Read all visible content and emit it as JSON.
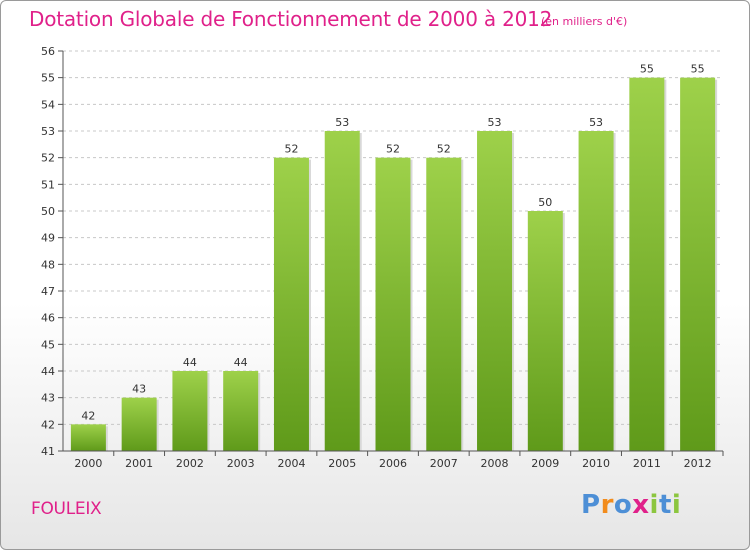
{
  "title": "Dotation Globale de Fonctionnement de 2000 à 2012",
  "subtitle": "(en milliers d'€)",
  "commune": "FOULEIX",
  "logo": {
    "text": "Proxiti",
    "letters": [
      {
        "char": "P",
        "color": "#4d8fd6"
      },
      {
        "char": "r",
        "color": "#f28c1c"
      },
      {
        "char": "o",
        "color": "#4d8fd6"
      },
      {
        "char": "x",
        "color": "#e0218a"
      },
      {
        "char": "i",
        "color": "#8cc63f"
      },
      {
        "char": "t",
        "color": "#4d8fd6"
      },
      {
        "char": "i",
        "color": "#8cc63f"
      }
    ]
  },
  "colors": {
    "accent": "#e0218a",
    "bar_light": "#9ed14a",
    "bar_dark": "#5f9a1a",
    "grid": "#c8c8c8",
    "axis": "#555555"
  },
  "chart_data": {
    "type": "bar",
    "title": "Dotation Globale de Fonctionnement de 2000 à 2012",
    "subtitle": "(en milliers d'€)",
    "xlabel": "",
    "ylabel": "",
    "categories": [
      "2000",
      "2001",
      "2002",
      "2003",
      "2004",
      "2005",
      "2006",
      "2007",
      "2008",
      "2009",
      "2010",
      "2011",
      "2012"
    ],
    "values": [
      42,
      43,
      44,
      44,
      52,
      53,
      52,
      52,
      53,
      50,
      53,
      55,
      55
    ],
    "ylim": [
      41,
      56
    ],
    "yticks": [
      41,
      42,
      43,
      44,
      45,
      46,
      47,
      48,
      49,
      50,
      51,
      52,
      53,
      54,
      55,
      56
    ],
    "grid": true,
    "grid_style": "dashed horizontal",
    "data_labels": true,
    "legend": "none"
  }
}
